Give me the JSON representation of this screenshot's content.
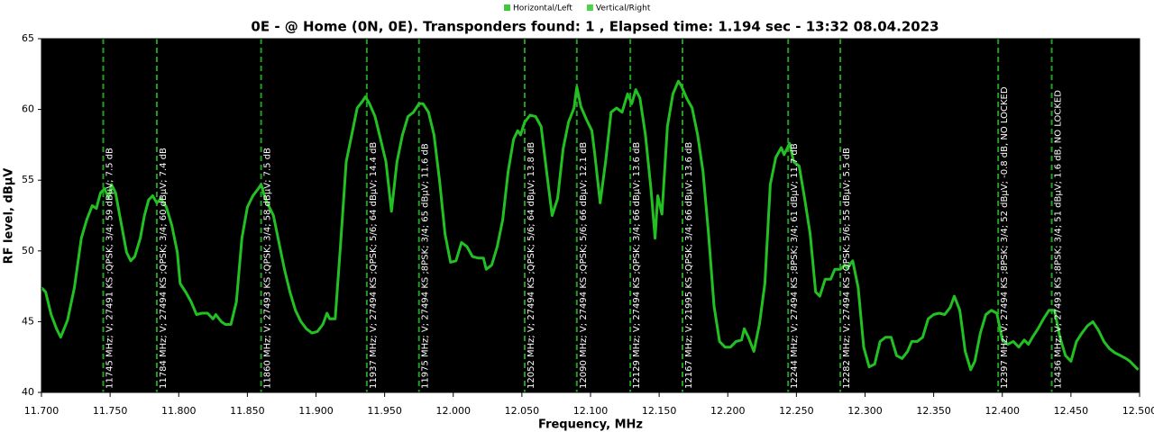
{
  "chart_data": {
    "type": "line",
    "title": "0E -  @ Home (0N, 0E). Transponders found: 1 , Elapsed time: 1.194 sec - 13:32 08.04.2023",
    "x_label": "Frequency, MHz",
    "y_label": "RF level, dBµV",
    "legend_items": [
      {
        "name": "Horizontal/Left",
        "color": "#3ec83e"
      },
      {
        "name": "Vertical/Right",
        "color": "#4ed24e"
      }
    ],
    "xlim": [
      11.7,
      12.5
    ],
    "xticks": [
      {
        "value": 11.7,
        "label": "11.700"
      },
      {
        "value": 11.75,
        "label": "11.750"
      },
      {
        "value": 11.8,
        "label": "11.800"
      },
      {
        "value": 11.85,
        "label": "11.850"
      },
      {
        "value": 11.9,
        "label": "11.900"
      },
      {
        "value": 11.95,
        "label": "11.950"
      },
      {
        "value": 12.0,
        "label": "12.000"
      },
      {
        "value": 12.05,
        "label": "12.050"
      },
      {
        "value": 12.1,
        "label": "12.100"
      },
      {
        "value": 12.15,
        "label": "12.150"
      },
      {
        "value": 12.2,
        "label": "12.200"
      },
      {
        "value": 12.25,
        "label": "12.250"
      },
      {
        "value": 12.3,
        "label": "12.300"
      },
      {
        "value": 12.35,
        "label": "12.350"
      },
      {
        "value": 12.4,
        "label": "12.400"
      },
      {
        "value": 12.45,
        "label": "12.450"
      },
      {
        "value": 12.5,
        "label": "12.500"
      }
    ],
    "ylim": [
      40,
      65
    ],
    "yticks": [
      40,
      45,
      50,
      55,
      60,
      65
    ],
    "series": [
      {
        "color": "#22c022",
        "x": [
          11.7,
          11.703,
          11.707,
          11.711,
          11.714,
          11.719,
          11.724,
          11.729,
          11.733,
          11.737,
          11.74,
          11.743,
          11.746,
          11.749,
          11.751,
          11.754,
          11.757,
          11.762,
          11.765,
          11.768,
          11.772,
          11.775,
          11.778,
          11.781,
          11.784,
          11.787,
          11.791,
          11.795,
          11.799,
          11.801,
          11.805,
          11.809,
          11.813,
          11.817,
          11.821,
          11.825,
          11.827,
          11.831,
          11.834,
          11.838,
          11.842,
          11.846,
          11.85,
          11.854,
          11.858,
          11.86,
          11.863,
          11.866,
          11.869,
          11.873,
          11.877,
          11.881,
          11.885,
          11.889,
          11.893,
          11.897,
          11.901,
          11.905,
          11.908,
          11.91,
          11.914,
          11.918,
          11.922,
          11.926,
          11.93,
          11.934,
          11.936,
          11.939,
          11.943,
          11.947,
          11.951,
          11.955,
          11.959,
          11.963,
          11.967,
          11.971,
          11.975,
          11.978,
          11.982,
          11.986,
          11.99,
          11.994,
          11.998,
          12.002,
          12.006,
          12.01,
          12.014,
          12.018,
          12.022,
          12.024,
          12.028,
          12.032,
          12.036,
          12.04,
          12.044,
          12.047,
          12.049,
          12.052,
          12.056,
          12.06,
          12.064,
          12.068,
          12.072,
          12.076,
          12.08,
          12.084,
          12.088,
          12.09,
          12.093,
          12.097,
          12.101,
          12.103,
          12.107,
          12.111,
          12.115,
          12.119,
          12.123,
          12.127,
          12.13,
          12.133,
          12.136,
          12.14,
          12.144,
          12.147,
          12.149,
          12.152,
          12.156,
          12.16,
          12.164,
          12.166,
          12.17,
          12.174,
          12.178,
          12.182,
          12.186,
          12.19,
          12.194,
          12.198,
          12.202,
          12.206,
          12.21,
          12.212,
          12.215,
          12.219,
          12.223,
          12.227,
          12.231,
          12.235,
          12.239,
          12.241,
          12.245,
          12.248,
          12.252,
          12.256,
          12.26,
          12.264,
          12.267,
          12.271,
          12.275,
          12.278,
          12.282,
          12.285,
          12.287,
          12.291,
          12.295,
          12.299,
          12.303,
          12.307,
          12.311,
          12.315,
          12.319,
          12.323,
          12.327,
          12.331,
          12.334,
          12.338,
          12.342,
          12.346,
          12.35,
          12.354,
          12.358,
          12.362,
          12.365,
          12.369,
          12.373,
          12.377,
          12.38,
          12.384,
          12.388,
          12.392,
          12.396,
          12.4,
          12.404,
          12.408,
          12.412,
          12.416,
          12.419,
          12.422,
          12.426,
          12.43,
          12.434,
          12.438,
          12.442,
          12.446,
          12.45,
          12.454,
          12.458,
          12.462,
          12.466,
          12.47,
          12.474,
          12.478,
          12.482,
          12.486,
          12.49,
          12.493,
          12.499
        ],
        "values": [
          47.4,
          47.1,
          45.5,
          44.5,
          43.9,
          45.1,
          47.4,
          50.9,
          52.2,
          53.2,
          53.0,
          54.1,
          54.4,
          53.7,
          54.7,
          54.1,
          52.5,
          49.9,
          49.3,
          49.6,
          50.9,
          52.5,
          53.6,
          53.9,
          53.4,
          53.7,
          53.1,
          51.8,
          49.9,
          47.7,
          47.1,
          46.4,
          45.5,
          45.6,
          45.6,
          45.2,
          45.5,
          45.0,
          44.8,
          44.8,
          46.4,
          50.9,
          53.1,
          53.9,
          54.4,
          54.7,
          53.7,
          53.1,
          52.5,
          50.6,
          48.7,
          47.1,
          45.8,
          45.0,
          44.5,
          44.2,
          44.3,
          44.8,
          45.6,
          45.2,
          45.2,
          50.6,
          56.3,
          58.2,
          60.1,
          60.6,
          60.9,
          60.4,
          59.5,
          57.9,
          56.3,
          52.8,
          56.3,
          58.2,
          59.5,
          59.8,
          60.4,
          60.4,
          59.8,
          58.2,
          55.0,
          51.2,
          49.2,
          49.3,
          50.6,
          50.3,
          49.6,
          49.5,
          49.5,
          48.7,
          49.0,
          50.3,
          52.2,
          55.6,
          57.9,
          58.5,
          58.2,
          59.1,
          59.6,
          59.5,
          58.8,
          55.6,
          52.5,
          53.7,
          57.2,
          59.1,
          60.1,
          61.6,
          60.2,
          59.3,
          58.5,
          56.9,
          53.4,
          56.3,
          59.8,
          60.1,
          59.8,
          61.1,
          60.4,
          61.4,
          60.8,
          58.2,
          54.4,
          50.9,
          53.9,
          52.6,
          58.8,
          61.1,
          62.0,
          61.7,
          60.8,
          60.1,
          58.2,
          55.6,
          51.2,
          46.1,
          43.6,
          43.2,
          43.2,
          43.6,
          43.7,
          44.5,
          43.9,
          42.9,
          44.8,
          47.7,
          54.7,
          56.6,
          57.3,
          56.8,
          57.6,
          56.3,
          56.0,
          53.7,
          51.2,
          47.1,
          46.8,
          48.0,
          48.0,
          48.7,
          48.7,
          49.0,
          48.8,
          49.3,
          47.4,
          43.2,
          41.8,
          42.0,
          43.6,
          43.9,
          43.9,
          42.6,
          42.4,
          42.9,
          43.6,
          43.6,
          43.9,
          45.2,
          45.5,
          45.6,
          45.5,
          46.0,
          46.8,
          45.8,
          42.9,
          41.6,
          42.2,
          44.2,
          45.5,
          45.8,
          45.6,
          43.7,
          43.4,
          43.6,
          43.2,
          43.7,
          43.4,
          43.9,
          44.5,
          45.2,
          45.8,
          45.8,
          43.9,
          42.6,
          42.2,
          43.6,
          44.2,
          44.7,
          45.0,
          44.4,
          43.6,
          43.1,
          42.8,
          42.6,
          42.4,
          42.2,
          41.6
        ]
      }
    ],
    "marker_color": "#1fa01f",
    "markers": [
      {
        "x": 11.745,
        "label": "11745 MHz; V; 27491 KS ;QPSK; 3/4; 59 dBµV; 7.5 dB"
      },
      {
        "x": 11.784,
        "label": "11784 MHz; V; 27494 KS ;QPSK; 3/4; 60 dBµV; 7.4 dB"
      },
      {
        "x": 11.86,
        "label": "11860 MHz; V; 27493 KS ;QPSK; 3/4; 58 dBµV; 7.5 dB"
      },
      {
        "x": 11.937,
        "label": "11937 MHz; V; 27494 KS ;QPSK; 5/6; 64 dBµV; 14.4 dB"
      },
      {
        "x": 11.975,
        "label": "11975 MHz; V; 27494 KS ;8PSK; 3/4; 65 dBµV; 11.6 dB"
      },
      {
        "x": 12.052,
        "label": "12052 MHz; V; 27494 KS ;QPSK; 5/6; 64 dBµV; 13.8 dB"
      },
      {
        "x": 12.09,
        "label": "12090 MHz; V; 27494 KS ;QPSK; 5/6; 66 dBµV; 12.1 dB"
      },
      {
        "x": 12.129,
        "label": "12129 MHz; V; 27494 KS ;QPSK; 3/4; 66 dBµV; 13.6 dB"
      },
      {
        "x": 12.167,
        "label": "12167 MHz; V; 21995 KS ;QPSK; 3/4; 66 dBµV; 13.6 dB"
      },
      {
        "x": 12.244,
        "label": "12244 MHz; V; 27494 KS ;8PSK; 3/4; 61 dBµV; 11.7 dB"
      },
      {
        "x": 12.282,
        "label": "12282 MHz; V; 27494 KS ;QPSK; 5/6; 55 dBµV; 5.5 dB"
      },
      {
        "x": 12.397,
        "label": "12397 MHz; V; 27494 KS ;8PSK; 3/4; 52 dBµV; -0.8 dB, NO LOCKED"
      },
      {
        "x": 12.436,
        "label": "12436 MHz; V; 27493 KS ;8PSK; 3/4; 51 dBµV; 1.6 dB, NO LOCKED"
      }
    ]
  }
}
